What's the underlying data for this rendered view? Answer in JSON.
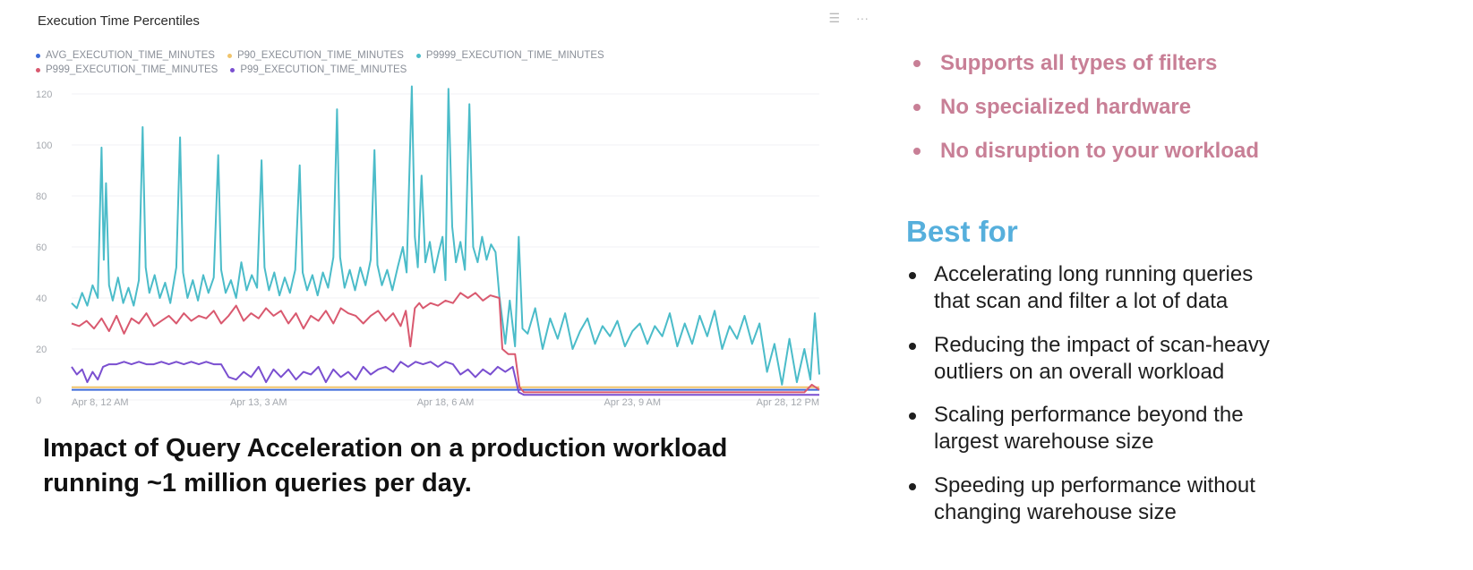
{
  "chart_panel": {
    "title": "Execution Time Percentiles",
    "toolbar": {
      "menu_icon": "☰",
      "more_icon": "···"
    }
  },
  "chart_data": {
    "type": "line",
    "title": "Execution Time Percentiles",
    "xlabel": "",
    "ylabel": "",
    "ylim": [
      0,
      120
    ],
    "yticks": [
      0,
      20,
      40,
      60,
      80,
      100,
      120
    ],
    "xlim": [
      0,
      100
    ],
    "xticks": [
      {
        "x": 0,
        "label": "Apr 8, 12 AM"
      },
      {
        "x": 25,
        "label": "Apr 13, 3 AM"
      },
      {
        "x": 50,
        "label": "Apr 18, 6 AM"
      },
      {
        "x": 75,
        "label": "Apr 23, 9 AM"
      },
      {
        "x": 100,
        "label": "Apr 28, 12 PM"
      }
    ],
    "grid": "horizontal",
    "legend_position": "top-left",
    "legend_rows": [
      [
        "AVG_EXECUTION_TIME_MINUTES",
        "P90_EXECUTION_TIME_MINUTES",
        "P9999_EXECUTION_TIME_MINUTES"
      ],
      [
        "P999_EXECUTION_TIME_MINUTES",
        "P99_EXECUTION_TIME_MINUTES"
      ]
    ],
    "series": [
      {
        "name": "AVG_EXECUTION_TIME_MINUTES",
        "color": "#3d6bd9",
        "points": [
          [
            0,
            4
          ],
          [
            100,
            4
          ]
        ]
      },
      {
        "name": "P90_EXECUTION_TIME_MINUTES",
        "color": "#f0c46c",
        "points": [
          [
            0,
            5
          ],
          [
            100,
            5
          ]
        ]
      },
      {
        "name": "P9999_EXECUTION_TIME_MINUTES",
        "color": "#4bbcc9",
        "points": [
          [
            0,
            38
          ],
          [
            0.7,
            36
          ],
          [
            1.4,
            42
          ],
          [
            2.1,
            37
          ],
          [
            2.8,
            45
          ],
          [
            3.5,
            40
          ],
          [
            4.0,
            99
          ],
          [
            4.3,
            55
          ],
          [
            4.6,
            85
          ],
          [
            5.0,
            45
          ],
          [
            5.5,
            39
          ],
          [
            6.2,
            48
          ],
          [
            6.9,
            38
          ],
          [
            7.6,
            44
          ],
          [
            8.3,
            37
          ],
          [
            9.0,
            47
          ],
          [
            9.5,
            107
          ],
          [
            9.9,
            52
          ],
          [
            10.4,
            42
          ],
          [
            11.1,
            49
          ],
          [
            11.8,
            40
          ],
          [
            12.5,
            46
          ],
          [
            13.2,
            38
          ],
          [
            14.0,
            52
          ],
          [
            14.5,
            103
          ],
          [
            14.9,
            50
          ],
          [
            15.5,
            40
          ],
          [
            16.2,
            47
          ],
          [
            16.9,
            39
          ],
          [
            17.6,
            49
          ],
          [
            18.3,
            42
          ],
          [
            19.0,
            48
          ],
          [
            19.6,
            96
          ],
          [
            20.0,
            51
          ],
          [
            20.6,
            42
          ],
          [
            21.3,
            47
          ],
          [
            22.0,
            40
          ],
          [
            22.7,
            54
          ],
          [
            23.4,
            43
          ],
          [
            24.1,
            49
          ],
          [
            24.8,
            44
          ],
          [
            25.4,
            94
          ],
          [
            25.8,
            52
          ],
          [
            26.4,
            43
          ],
          [
            27.1,
            50
          ],
          [
            27.8,
            41
          ],
          [
            28.5,
            48
          ],
          [
            29.2,
            42
          ],
          [
            29.9,
            51
          ],
          [
            30.5,
            92
          ],
          [
            30.9,
            50
          ],
          [
            31.5,
            43
          ],
          [
            32.2,
            49
          ],
          [
            32.9,
            41
          ],
          [
            33.6,
            50
          ],
          [
            34.3,
            44
          ],
          [
            35.0,
            56
          ],
          [
            35.5,
            114
          ],
          [
            35.9,
            56
          ],
          [
            36.5,
            44
          ],
          [
            37.2,
            51
          ],
          [
            37.9,
            43
          ],
          [
            38.6,
            52
          ],
          [
            39.3,
            45
          ],
          [
            40.0,
            55
          ],
          [
            40.5,
            98
          ],
          [
            40.9,
            53
          ],
          [
            41.5,
            45
          ],
          [
            42.2,
            51
          ],
          [
            42.9,
            43
          ],
          [
            43.6,
            52
          ],
          [
            44.3,
            60
          ],
          [
            44.8,
            50
          ],
          [
            45.5,
            123
          ],
          [
            45.9,
            64
          ],
          [
            46.3,
            52
          ],
          [
            46.8,
            88
          ],
          [
            47.3,
            54
          ],
          [
            47.9,
            62
          ],
          [
            48.5,
            50
          ],
          [
            49.1,
            58
          ],
          [
            49.6,
            64
          ],
          [
            50.0,
            47
          ],
          [
            50.4,
            122
          ],
          [
            50.9,
            68
          ],
          [
            51.4,
            54
          ],
          [
            52.0,
            62
          ],
          [
            52.6,
            51
          ],
          [
            53.2,
            116
          ],
          [
            53.7,
            60
          ],
          [
            54.3,
            54
          ],
          [
            54.9,
            64
          ],
          [
            55.5,
            55
          ],
          [
            56.1,
            61
          ],
          [
            56.7,
            58
          ],
          [
            57.2,
            41
          ],
          [
            58.0,
            22
          ],
          [
            58.6,
            39
          ],
          [
            59.3,
            21
          ],
          [
            59.8,
            64
          ],
          [
            60.3,
            28
          ],
          [
            61,
            26
          ],
          [
            62,
            36
          ],
          [
            63,
            20
          ],
          [
            64,
            32
          ],
          [
            65,
            24
          ],
          [
            66,
            34
          ],
          [
            67,
            20
          ],
          [
            68,
            27
          ],
          [
            69,
            32
          ],
          [
            70,
            22
          ],
          [
            71,
            29
          ],
          [
            72,
            25
          ],
          [
            73,
            31
          ],
          [
            74,
            21
          ],
          [
            75,
            27
          ],
          [
            76,
            30
          ],
          [
            77,
            22
          ],
          [
            78,
            29
          ],
          [
            79,
            25
          ],
          [
            80,
            34
          ],
          [
            81,
            21
          ],
          [
            82,
            30
          ],
          [
            83,
            22
          ],
          [
            84,
            33
          ],
          [
            85,
            25
          ],
          [
            86,
            35
          ],
          [
            87,
            20
          ],
          [
            88,
            29
          ],
          [
            89,
            24
          ],
          [
            90,
            33
          ],
          [
            91,
            22
          ],
          [
            92,
            30
          ],
          [
            93,
            11
          ],
          [
            94,
            22
          ],
          [
            95,
            6
          ],
          [
            96,
            24
          ],
          [
            97,
            7
          ],
          [
            98,
            20
          ],
          [
            98.8,
            8
          ],
          [
            99.4,
            34
          ],
          [
            100,
            10
          ]
        ]
      },
      {
        "name": "P999_EXECUTION_TIME_MINUTES",
        "color": "#d9596f",
        "points": [
          [
            0,
            30
          ],
          [
            1,
            29
          ],
          [
            2,
            31
          ],
          [
            3,
            28
          ],
          [
            4,
            32
          ],
          [
            5,
            27
          ],
          [
            6,
            33
          ],
          [
            7,
            26
          ],
          [
            8,
            32
          ],
          [
            9,
            30
          ],
          [
            10,
            34
          ],
          [
            11,
            29
          ],
          [
            12,
            31
          ],
          [
            13,
            33
          ],
          [
            14,
            30
          ],
          [
            15,
            34
          ],
          [
            16,
            31
          ],
          [
            17,
            33
          ],
          [
            18,
            32
          ],
          [
            19,
            35
          ],
          [
            20,
            30
          ],
          [
            21,
            33
          ],
          [
            22,
            37
          ],
          [
            23,
            31
          ],
          [
            24,
            34
          ],
          [
            25,
            32
          ],
          [
            26,
            36
          ],
          [
            27,
            33
          ],
          [
            28,
            35
          ],
          [
            29,
            30
          ],
          [
            30,
            34
          ],
          [
            31,
            28
          ],
          [
            32,
            33
          ],
          [
            33,
            31
          ],
          [
            34,
            35
          ],
          [
            35,
            30
          ],
          [
            36,
            36
          ],
          [
            37,
            34
          ],
          [
            38,
            33
          ],
          [
            39,
            30
          ],
          [
            40,
            33
          ],
          [
            41,
            35
          ],
          [
            42,
            31
          ],
          [
            43,
            34
          ],
          [
            44,
            29
          ],
          [
            44.7,
            35
          ],
          [
            45.3,
            21
          ],
          [
            45.9,
            36
          ],
          [
            46.5,
            38
          ],
          [
            47,
            36
          ],
          [
            48,
            38
          ],
          [
            49,
            37
          ],
          [
            50,
            39
          ],
          [
            51,
            38
          ],
          [
            52,
            42
          ],
          [
            53,
            40
          ],
          [
            54,
            42
          ],
          [
            55,
            39
          ],
          [
            56,
            41
          ],
          [
            57.2,
            40
          ],
          [
            57.6,
            20
          ],
          [
            58.4,
            18
          ],
          [
            59.3,
            18
          ],
          [
            59.9,
            5
          ],
          [
            60.5,
            3
          ],
          [
            62,
            3
          ],
          [
            65,
            3
          ],
          [
            70,
            3
          ],
          [
            75,
            3
          ],
          [
            80,
            3
          ],
          [
            85,
            3
          ],
          [
            90,
            3
          ],
          [
            95,
            3
          ],
          [
            98,
            3
          ],
          [
            99,
            6
          ],
          [
            100,
            4
          ]
        ]
      },
      {
        "name": "P99_EXECUTION_TIME_MINUTES",
        "color": "#7a4fd0",
        "points": [
          [
            0,
            13
          ],
          [
            0.7,
            10
          ],
          [
            1.4,
            12
          ],
          [
            2.1,
            7
          ],
          [
            2.8,
            11
          ],
          [
            3.5,
            8
          ],
          [
            4.2,
            13
          ],
          [
            5,
            14
          ],
          [
            6,
            14
          ],
          [
            7,
            15
          ],
          [
            8,
            14
          ],
          [
            9,
            15
          ],
          [
            10,
            14
          ],
          [
            11,
            14
          ],
          [
            12,
            15
          ],
          [
            13,
            14
          ],
          [
            14,
            15
          ],
          [
            15,
            14
          ],
          [
            16,
            15
          ],
          [
            17,
            14
          ],
          [
            18,
            15
          ],
          [
            19,
            14
          ],
          [
            20,
            14
          ],
          [
            21,
            9
          ],
          [
            22,
            8
          ],
          [
            23,
            11
          ],
          [
            24,
            9
          ],
          [
            25,
            13
          ],
          [
            26,
            7
          ],
          [
            27,
            12
          ],
          [
            28,
            9
          ],
          [
            29,
            12
          ],
          [
            30,
            8
          ],
          [
            31,
            11
          ],
          [
            32,
            10
          ],
          [
            33,
            13
          ],
          [
            34,
            7
          ],
          [
            35,
            12
          ],
          [
            36,
            9
          ],
          [
            37,
            11
          ],
          [
            38,
            8
          ],
          [
            39,
            13
          ],
          [
            40,
            10
          ],
          [
            41,
            12
          ],
          [
            42,
            13
          ],
          [
            43,
            11
          ],
          [
            44,
            15
          ],
          [
            45,
            13
          ],
          [
            46,
            15
          ],
          [
            47,
            14
          ],
          [
            48,
            15
          ],
          [
            49,
            13
          ],
          [
            50,
            15
          ],
          [
            51,
            14
          ],
          [
            52,
            10
          ],
          [
            53,
            12
          ],
          [
            54,
            9
          ],
          [
            55,
            12
          ],
          [
            56,
            10
          ],
          [
            57,
            13
          ],
          [
            58,
            11
          ],
          [
            59,
            13
          ],
          [
            59.8,
            3
          ],
          [
            60.5,
            2
          ],
          [
            65,
            2
          ],
          [
            70,
            2
          ],
          [
            75,
            2
          ],
          [
            80,
            2
          ],
          [
            85,
            2
          ],
          [
            90,
            2
          ],
          [
            95,
            2
          ],
          [
            100,
            2
          ]
        ]
      }
    ]
  },
  "caption": {
    "line1": "Impact of Query Acceleration on a production workload",
    "line2": "running ~1 million queries per day."
  },
  "features": [
    "Supports all types of filters",
    "No specialized hardware",
    "No disruption to your workload"
  ],
  "features_color": "#c87f96",
  "best_for": {
    "title": "Best for",
    "title_color": "#56afdc",
    "items": [
      {
        "line1": "Accelerating long running queries",
        "line2": "that scan and filter a lot of data"
      },
      {
        "line1": "Reducing the impact of scan-heavy",
        "line2": "outliers on an overall workload"
      },
      {
        "line1": "Scaling performance beyond the",
        "line2": "largest warehouse size"
      },
      {
        "line1": "Speeding up performance without",
        "line2": "changing warehouse size"
      }
    ]
  }
}
